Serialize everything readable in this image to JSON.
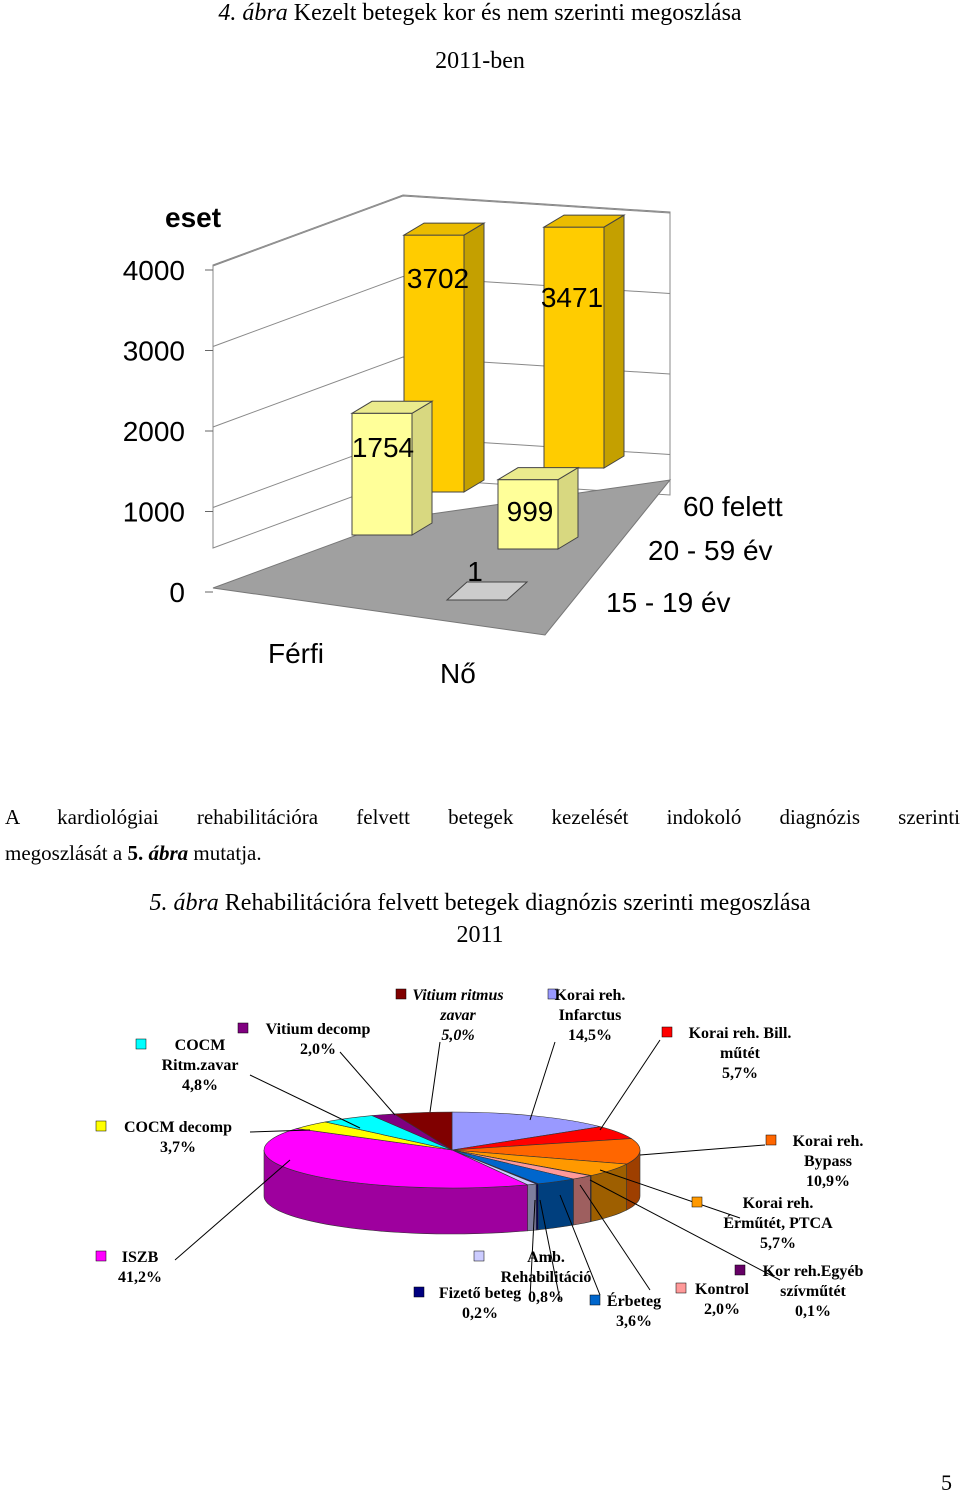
{
  "fig4": {
    "caption_prefix": "4. ábra",
    "caption_rest": " Kezelt betegek kor és nem szerinti megoszlása",
    "caption_line2": "2011-ben"
  },
  "paragraph": {
    "line1": "A kardiológiai rehabilitációra felvett betegek kezelését indokoló diagnózis szerinti",
    "line2_a": "megoszlását a ",
    "line2_b": "5. ",
    "line2_c": "ábra",
    "line2_d": " mutatja."
  },
  "fig5": {
    "caption_prefix": "5. ábra",
    "caption_rest": " Rehabilitációra felvett betegek diagnózis szerinti megoszlása",
    "caption_line2": "2011"
  },
  "page_number": "5",
  "chart_data": [
    {
      "type": "bar",
      "ylabel": "eset",
      "ylim": [
        0,
        4000
      ],
      "yticks": [
        "4000",
        "3000",
        "2000",
        "1000",
        "0"
      ],
      "x_categories": [
        "Férfi",
        "Nő"
      ],
      "depth_categories": [
        "60 felett",
        "20 - 59 év",
        "15 - 19 év"
      ],
      "series": [
        {
          "name": "60 felett",
          "values": [
            3702,
            3471
          ]
        },
        {
          "name": "20 - 59 év",
          "values": [
            1754,
            999
          ]
        },
        {
          "name": "15 - 19 év",
          "values": [
            null,
            1
          ]
        }
      ],
      "colors": {
        "tall": "#ffcc00",
        "mid": "#ffff99",
        "low": "#cccccc",
        "floor": "#999999"
      }
    },
    {
      "type": "pie",
      "slices": [
        {
          "label": "Korai reh. Infarctus",
          "value_label": "14,5%",
          "value": 14.5,
          "color": "#9999ff"
        },
        {
          "label": "Korai reh. Bill. műtét",
          "value_label": "5,7%",
          "value": 5.7,
          "color": "#ff0000"
        },
        {
          "label": "Korai reh. Bypass",
          "value_label": "10,9%",
          "value": 10.9,
          "color": "#ff6600"
        },
        {
          "label": "Korai reh. Érműtét, PTCA",
          "value_label": "5,7%",
          "value": 5.7,
          "color": "#ff9900"
        },
        {
          "label": "Kor reh.Egyéb szívműtét",
          "value_label": "0,1%",
          "value": 0.1,
          "color": "#660066"
        },
        {
          "label": "Kontrol",
          "value_label": "2,0%",
          "value": 2.0,
          "color": "#ff9999"
        },
        {
          "label": "Érbeteg",
          "value_label": "3,6%",
          "value": 3.6,
          "color": "#0066cc"
        },
        {
          "label": "Fizető beteg",
          "value_label": "0,2%",
          "value": 0.2,
          "color": "#000080"
        },
        {
          "label": "Amb. Rehabilitáció",
          "value_label": "0,8%",
          "value": 0.8,
          "color": "#ccccff"
        },
        {
          "label": "ISZB",
          "value_label": "41,2%",
          "value": 41.2,
          "color": "#ff00ff"
        },
        {
          "label": "COCM decomp",
          "value_label": "3,7%",
          "value": 3.7,
          "color": "#ffff00"
        },
        {
          "label": "COCM Ritm.zavar",
          "value_label": "4,8%",
          "value": 4.8,
          "color": "#00ffff"
        },
        {
          "label": "Vitium decomp",
          "value_label": "2,0%",
          "value": 2.0,
          "color": "#800080"
        },
        {
          "label": "Vitium ritmus zavar",
          "value_label": "5,0%",
          "value": 5.0,
          "color": "#800000"
        }
      ]
    }
  ]
}
